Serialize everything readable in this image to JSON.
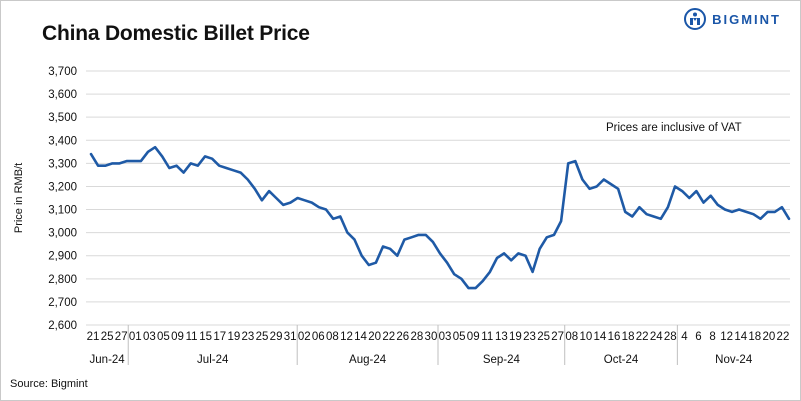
{
  "header": {
    "title": "China Domestic Billet Price",
    "brand": "BIGMINT"
  },
  "footer": {
    "source": "Source: Bigmint"
  },
  "colors": {
    "line": "#1f5aa6",
    "grid": "#d9d9d9",
    "brand": "#1a56a8"
  },
  "chart_data": {
    "type": "line",
    "title": "China Domestic Billet Price",
    "ylabel": "Price in RMB/t",
    "xlabel": "",
    "ylim": [
      2600,
      3700
    ],
    "yticks": [
      2600,
      2700,
      2800,
      2900,
      3000,
      3100,
      3200,
      3300,
      3400,
      3500,
      3600,
      3700
    ],
    "ytick_labels": [
      "2,600",
      "2,700",
      "2,800",
      "2,900",
      "3,000",
      "3,100",
      "3,200",
      "3,300",
      "3,400",
      "3,500",
      "3,600",
      "3,700"
    ],
    "grid": true,
    "legend": "none",
    "annotation": "Prices are inclusive of VAT",
    "x_day_labels": [
      "21",
      "25",
      "27",
      "01",
      "03",
      "05",
      "09",
      "11",
      "15",
      "17",
      "19",
      "23",
      "25",
      "29",
      "31",
      "02",
      "06",
      "08",
      "12",
      "14",
      "20",
      "22",
      "26",
      "28",
      "30",
      "03",
      "05",
      "09",
      "11",
      "13",
      "19",
      "23",
      "25",
      "27",
      "08",
      "10",
      "14",
      "16",
      "18",
      "22",
      "24",
      "28",
      "4",
      "6",
      "8",
      "12",
      "14",
      "18",
      "20",
      "22"
    ],
    "months": [
      {
        "label": "Jun-24",
        "start": 0,
        "end": 3
      },
      {
        "label": "Jul-24",
        "start": 3,
        "end": 15
      },
      {
        "label": "Aug-24",
        "start": 15,
        "end": 25
      },
      {
        "label": "Sep-24",
        "start": 25,
        "end": 34
      },
      {
        "label": "Oct-24",
        "start": 34,
        "end": 42
      },
      {
        "label": "Nov-24",
        "start": 42,
        "end": 50
      }
    ],
    "series": [
      {
        "values": [
          3340,
          3290,
          3290,
          3300,
          3300,
          3310,
          3310,
          3310,
          3350,
          3370,
          3330,
          3280,
          3290,
          3260,
          3300,
          3290,
          3330,
          3320,
          3290,
          3280,
          3270,
          3260,
          3230,
          3190,
          3140,
          3180,
          3150,
          3120,
          3130,
          3150,
          3140,
          3130,
          3110,
          3100,
          3060,
          3070,
          3000,
          2970,
          2900,
          2860,
          2870,
          2940,
          2930,
          2900,
          2970,
          2980,
          2990,
          2990,
          2960,
          2910,
          2870,
          2820,
          2800,
          2760,
          2760,
          2790,
          2830,
          2890,
          2910,
          2880,
          2910,
          2900,
          2830,
          2930,
          2980,
          2990,
          3050,
          3300,
          3310,
          3230,
          3190,
          3200,
          3230,
          3210,
          3190,
          3090,
          3070,
          3110,
          3080,
          3070,
          3060,
          3110,
          3200,
          3180,
          3150,
          3180,
          3130,
          3160,
          3120,
          3100,
          3090,
          3100,
          3090,
          3080,
          3060,
          3090,
          3090,
          3110,
          3060
        ]
      }
    ]
  }
}
